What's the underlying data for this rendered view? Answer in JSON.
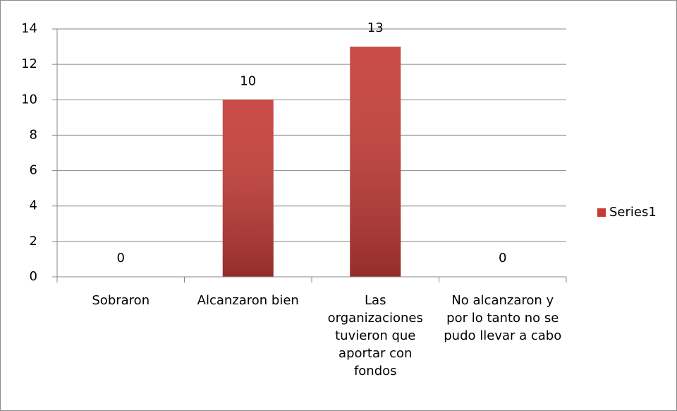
{
  "chart_data": {
    "type": "bar",
    "categories": [
      "Sobraron",
      "Alcanzaron bien",
      "Las organizaciones tuvieron que aportar con fondos",
      "No alcanzaron y por lo tanto no se pudo llevar a cabo"
    ],
    "series": [
      {
        "name": "Series1",
        "color": "#c53c37",
        "values": [
          0,
          10,
          13,
          0
        ]
      }
    ],
    "ylim": [
      0,
      14
    ],
    "yticks": [
      0,
      2,
      4,
      6,
      8,
      10,
      12,
      14
    ],
    "grid": true,
    "legend": "right"
  }
}
